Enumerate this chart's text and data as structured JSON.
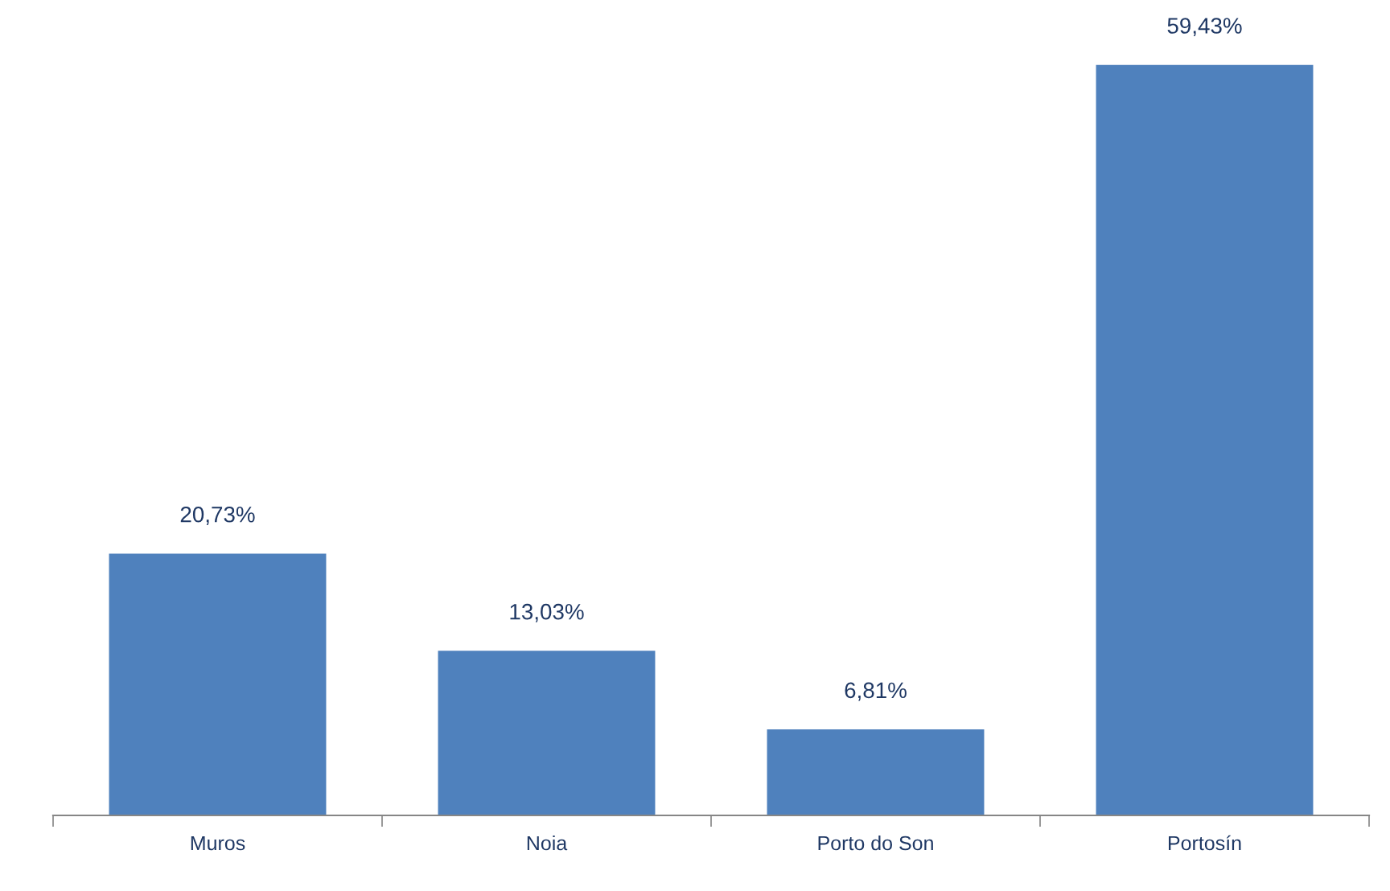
{
  "chart_data": {
    "type": "bar",
    "categories": [
      "Muros",
      "Noia",
      "Porto do Son",
      "Portosín"
    ],
    "values": [
      20.73,
      13.03,
      6.81,
      59.43
    ],
    "value_labels": [
      "20,73%",
      "13,03%",
      "6,81%",
      "59,43%"
    ],
    "color": "#4f81bd"
  }
}
